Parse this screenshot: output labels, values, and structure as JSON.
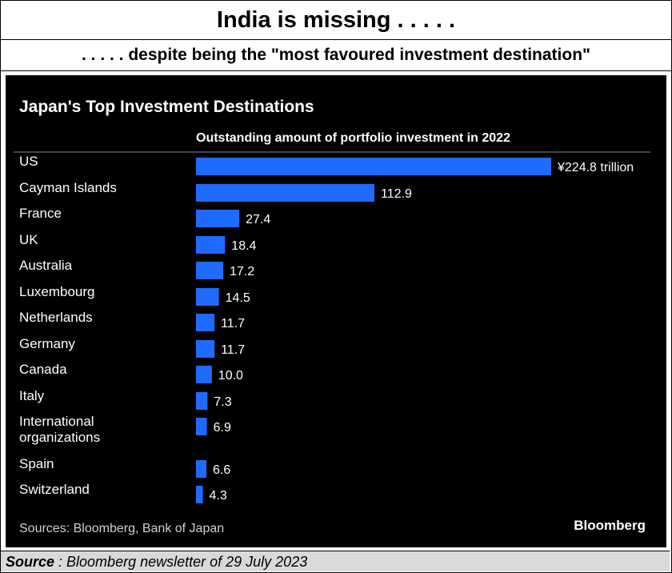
{
  "headline": "India is missing . . . . .",
  "subheadline": ". . . . . despite being the \"most favoured investment destination\"",
  "source": {
    "label": "Source",
    "text": " : Bloomberg newsletter of 29 July 2023"
  },
  "chart_data": {
    "type": "bar",
    "orientation": "horizontal",
    "title": "Japan's Top Investment Destinations",
    "subtitle": "Outstanding amount of portfolio investment in 2022",
    "categories": [
      "US",
      "Cayman Islands",
      "France",
      "UK",
      "Australia",
      "Luxembourg",
      "Netherlands",
      "Germany",
      "Canada",
      "Italy",
      "International organizations",
      "Spain",
      "Switzerland"
    ],
    "values": [
      224.8,
      112.9,
      27.4,
      18.4,
      17.2,
      14.5,
      11.7,
      11.7,
      10.0,
      7.3,
      6.9,
      6.6,
      4.3
    ],
    "value_labels": [
      "¥224.8 trillion",
      "112.9",
      "27.4",
      "18.4",
      "17.2",
      "14.5",
      "11.7",
      "11.7",
      "10.0",
      "7.3",
      "6.9",
      "6.6",
      "4.3"
    ],
    "unit": "¥ trillion",
    "xlim": [
      0,
      224.8
    ],
    "grid": false,
    "bar_color": "#1f6bff",
    "background": "#000000",
    "source_note": "Sources: Bloomberg, Bank of Japan",
    "brand": "Bloomberg"
  }
}
